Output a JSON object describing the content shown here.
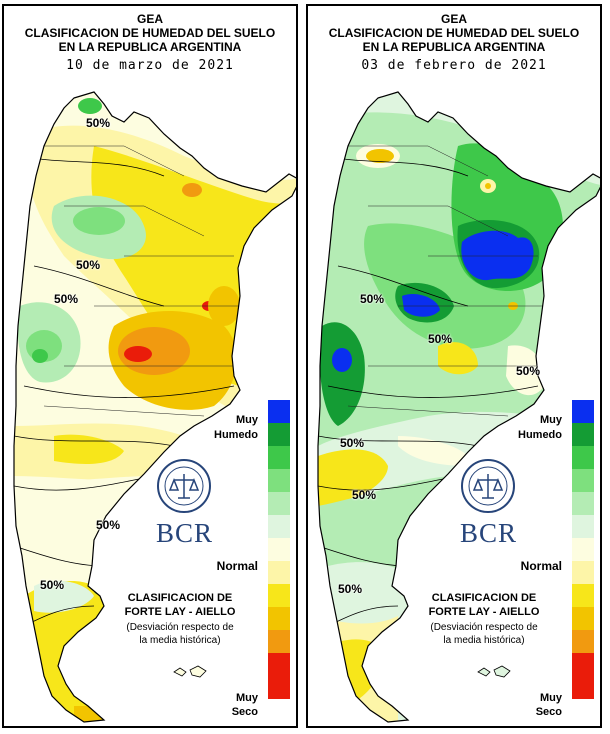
{
  "panels": [
    {
      "org": "GEA",
      "title_line1": "CLASIFICACION DE HUMEDAD DEL SUELO",
      "title_line2": "EN LA REPUBLICA ARGENTINA",
      "date": "10 de marzo de 2021",
      "isoline_labels": [
        "50%",
        "50%",
        "50%",
        "50%",
        "50%"
      ]
    },
    {
      "org": "GEA",
      "title_line1": "CLASIFICACION DE HUMEDAD DEL SUELO",
      "title_line2": "EN LA REPUBLICA ARGENTINA",
      "date": "03 de febrero de 2021",
      "isoline_labels": [
        "50%",
        "50%",
        "50%",
        "50%",
        "50%",
        "50%"
      ]
    }
  ],
  "legend": {
    "muy": "Muy",
    "humedo": "Humedo",
    "normal": "Normal",
    "seco": "Seco",
    "classification_line1": "CLASIFICACION DE",
    "classification_line2": "FORTE LAY - AIELLO",
    "note_line1": "(Desviación respecto de",
    "note_line2": "la media histórica)",
    "colors_wet_to_dry": [
      "#0a2ff0",
      "#149c34",
      "#3ec84a",
      "#7ee07e",
      "#b4ecb4",
      "#dff5df",
      "#fdfde0",
      "#fdf5a8",
      "#f7e61a",
      "#f2c400",
      "#f19a10",
      "#ea1c0a"
    ],
    "bcr_logo": "BCR"
  }
}
